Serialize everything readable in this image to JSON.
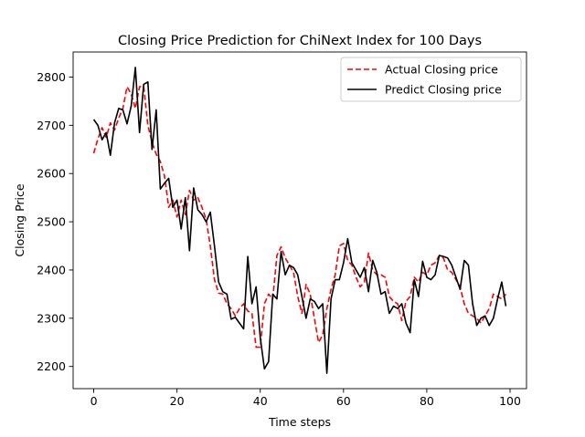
{
  "chart_data": {
    "type": "line",
    "title": "Closing Price Prediction for ChiNext Index for 100 Days",
    "xlabel": "Time steps",
    "ylabel": "Closing Price",
    "xlim": [
      -4.95,
      103.95
    ],
    "ylim": [
      2154,
      2852
    ],
    "xticks": [
      0,
      20,
      40,
      60,
      80,
      100
    ],
    "yticks": [
      2200,
      2300,
      2400,
      2500,
      2600,
      2700,
      2800
    ],
    "grid": false,
    "legend_position": "top-right",
    "series": [
      {
        "name": "Actual Closing price",
        "color": "#ff0000",
        "dash": true,
        "x": [
          0,
          1,
          2,
          3,
          4,
          5,
          6,
          7,
          8,
          9,
          10,
          11,
          12,
          13,
          14,
          15,
          16,
          17,
          18,
          19,
          20,
          21,
          22,
          23,
          24,
          25,
          26,
          27,
          28,
          29,
          30,
          31,
          32,
          33,
          34,
          35,
          36,
          37,
          38,
          39,
          40,
          41,
          42,
          43,
          44,
          45,
          46,
          47,
          48,
          49,
          50,
          51,
          52,
          53,
          54,
          55,
          56,
          57,
          58,
          59,
          60,
          61,
          62,
          63,
          64,
          65,
          66,
          67,
          68,
          69,
          70,
          71,
          72,
          73,
          74,
          75,
          76,
          77,
          78,
          79,
          80,
          81,
          82,
          83,
          84,
          85,
          86,
          87,
          88,
          89,
          90,
          91,
          92,
          93,
          94,
          95,
          96,
          97,
          98,
          99
        ],
        "values": [
          2642,
          2672,
          2695,
          2675,
          2705,
          2690,
          2715,
          2735,
          2780,
          2765,
          2735,
          2780,
          2781,
          2700,
          2665,
          2640,
          2625,
          2595,
          2530,
          2545,
          2510,
          2545,
          2515,
          2565,
          2545,
          2550,
          2530,
          2505,
          2450,
          2380,
          2352,
          2350,
          2330,
          2320,
          2305,
          2320,
          2330,
          2315,
          2310,
          2240,
          2240,
          2330,
          2350,
          2340,
          2430,
          2448,
          2425,
          2410,
          2395,
          2345,
          2310,
          2370,
          2350,
          2300,
          2250,
          2265,
          2320,
          2360,
          2390,
          2450,
          2455,
          2420,
          2410,
          2385,
          2365,
          2375,
          2435,
          2400,
          2390,
          2390,
          2385,
          2345,
          2335,
          2330,
          2295,
          2335,
          2345,
          2385,
          2375,
          2395,
          2390,
          2410,
          2415,
          2430,
          2425,
          2400,
          2395,
          2380,
          2365,
          2330,
          2310,
          2305,
          2300,
          2290,
          2305,
          2320,
          2350,
          2345,
          2340,
          2350
        ]
      },
      {
        "name": "Predict Closing price",
        "color": "#000000",
        "dash": false,
        "x": [
          0,
          1,
          2,
          3,
          4,
          5,
          6,
          7,
          8,
          9,
          10,
          11,
          12,
          13,
          14,
          15,
          16,
          17,
          18,
          19,
          20,
          21,
          22,
          23,
          24,
          25,
          26,
          27,
          28,
          29,
          30,
          31,
          32,
          33,
          34,
          35,
          36,
          37,
          38,
          39,
          40,
          41,
          42,
          43,
          44,
          45,
          46,
          47,
          48,
          49,
          50,
          51,
          52,
          53,
          54,
          55,
          56,
          57,
          58,
          59,
          60,
          61,
          62,
          63,
          64,
          65,
          66,
          67,
          68,
          69,
          70,
          71,
          72,
          73,
          74,
          75,
          76,
          77,
          78,
          79,
          80,
          81,
          82,
          83,
          84,
          85,
          86,
          87,
          88,
          89,
          90,
          91,
          92,
          93,
          94,
          95,
          96,
          97,
          98,
          99
        ],
        "values": [
          2712,
          2700,
          2670,
          2685,
          2638,
          2705,
          2735,
          2732,
          2703,
          2740,
          2820,
          2685,
          2785,
          2790,
          2650,
          2732,
          2568,
          2580,
          2590,
          2530,
          2545,
          2485,
          2550,
          2440,
          2570,
          2525,
          2515,
          2500,
          2520,
          2450,
          2375,
          2355,
          2350,
          2298,
          2302,
          2290,
          2278,
          2428,
          2330,
          2365,
          2260,
          2195,
          2210,
          2350,
          2340,
          2438,
          2390,
          2410,
          2405,
          2390,
          2345,
          2300,
          2340,
          2335,
          2320,
          2330,
          2186,
          2340,
          2380,
          2380,
          2415,
          2465,
          2415,
          2400,
          2385,
          2405,
          2355,
          2420,
          2395,
          2350,
          2355,
          2310,
          2325,
          2320,
          2330,
          2290,
          2270,
          2380,
          2345,
          2418,
          2385,
          2380,
          2390,
          2430,
          2428,
          2425,
          2410,
          2385,
          2360,
          2420,
          2410,
          2330,
          2285,
          2300,
          2305,
          2285,
          2300,
          2340,
          2375,
          2325
        ]
      }
    ]
  }
}
